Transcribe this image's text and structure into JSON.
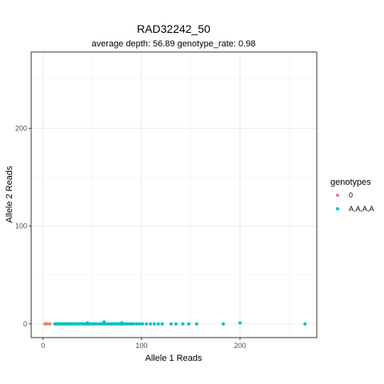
{
  "chart_data": {
    "type": "scatter",
    "title": "RAD32242_50",
    "subtitle": "average depth:  56.89  genotype_rate:  0.98",
    "xlabel": "Allele 1 Reads",
    "ylabel": "Allele 2 Reads",
    "xlim": [
      -12,
      278
    ],
    "ylim": [
      -14,
      278
    ],
    "x_ticks": [
      0,
      100,
      200
    ],
    "y_ticks": [
      0,
      100,
      200
    ],
    "x_tick_labels": [
      "0",
      "100",
      "200"
    ],
    "y_tick_labels": [
      "0",
      "100",
      "200"
    ],
    "grid": true,
    "legend": {
      "title": "genotypes",
      "position": "right"
    },
    "series": [
      {
        "name": "0",
        "color": "#F8766D",
        "points": [
          [
            2,
            0
          ],
          [
            4,
            0
          ],
          [
            7,
            0
          ]
        ]
      },
      {
        "name": "A,A,A,A",
        "color": "#00BFC4",
        "points": [
          [
            12,
            0
          ],
          [
            14,
            0
          ],
          [
            16,
            0
          ],
          [
            18,
            0
          ],
          [
            20,
            0
          ],
          [
            22,
            0
          ],
          [
            24,
            0
          ],
          [
            26,
            0
          ],
          [
            28,
            0
          ],
          [
            30,
            0
          ],
          [
            32,
            0
          ],
          [
            34,
            0
          ],
          [
            36,
            0
          ],
          [
            38,
            0
          ],
          [
            40,
            0
          ],
          [
            42,
            0
          ],
          [
            44,
            0
          ],
          [
            46,
            0
          ],
          [
            48,
            0
          ],
          [
            50,
            0
          ],
          [
            52,
            0
          ],
          [
            54,
            0
          ],
          [
            56,
            0
          ],
          [
            58,
            0
          ],
          [
            60,
            0
          ],
          [
            62,
            0
          ],
          [
            64,
            0
          ],
          [
            66,
            0
          ],
          [
            68,
            0
          ],
          [
            70,
            0
          ],
          [
            72,
            0
          ],
          [
            74,
            0
          ],
          [
            76,
            0
          ],
          [
            78,
            0
          ],
          [
            80,
            0
          ],
          [
            82,
            0
          ],
          [
            84,
            0
          ],
          [
            86,
            0
          ],
          [
            88,
            0
          ],
          [
            90,
            0
          ],
          [
            92,
            0
          ],
          [
            95,
            0
          ],
          [
            98,
            0
          ],
          [
            101,
            0
          ],
          [
            105,
            0
          ],
          [
            109,
            0
          ],
          [
            113,
            0
          ],
          [
            117,
            0
          ],
          [
            121,
            0
          ],
          [
            130,
            0
          ],
          [
            135,
            0
          ],
          [
            142,
            0
          ],
          [
            148,
            0
          ],
          [
            156,
            0
          ],
          [
            183,
            0
          ],
          [
            200,
            1
          ],
          [
            266,
            0
          ],
          [
            62,
            2
          ],
          [
            45,
            1
          ],
          [
            80,
            1
          ]
        ]
      }
    ]
  }
}
